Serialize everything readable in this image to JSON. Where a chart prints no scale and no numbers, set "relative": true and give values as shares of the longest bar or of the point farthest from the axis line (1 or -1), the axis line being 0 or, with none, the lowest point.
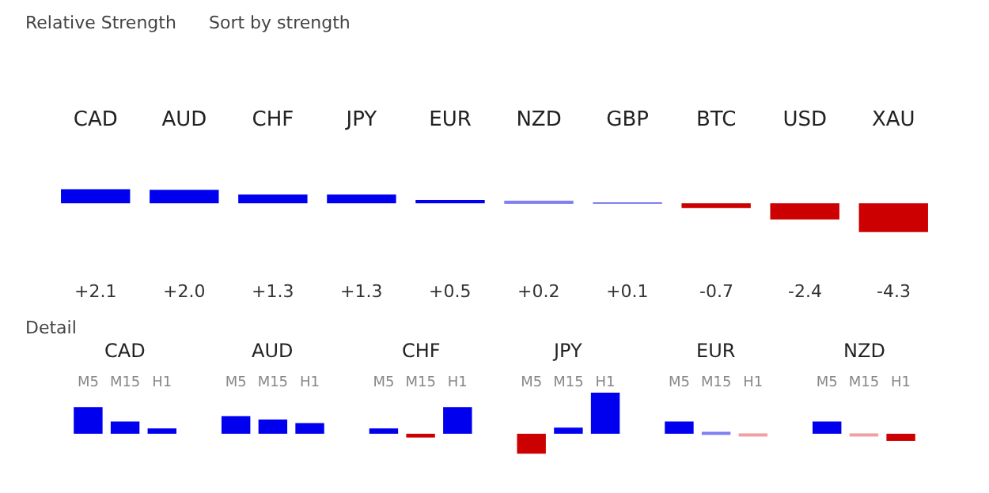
{
  "chart_data": [
    {
      "type": "bar",
      "title": "Relative Strength",
      "annotations": [
        "Sort by strength"
      ],
      "categories": [
        "CAD",
        "AUD",
        "CHF",
        "JPY",
        "EUR",
        "NZD",
        "GBP",
        "BTC",
        "USD",
        "XAU"
      ],
      "values": [
        2.1,
        2.0,
        1.3,
        1.3,
        0.5,
        0.2,
        0.1,
        -0.7,
        -2.4,
        -4.3
      ],
      "colors": [
        "#0000ee",
        "#0000ee",
        "#0000ee",
        "#0000ee",
        "#0000ee",
        "#8080f0",
        "#8080f0",
        "#cc0000",
        "#cc0000",
        "#cc0000"
      ],
      "value_labels": [
        "+2.1",
        "+2.0",
        "+1.3",
        "+1.3",
        "+0.5",
        "+0.2",
        "+0.1",
        "-0.7",
        "-2.4",
        "-4.3"
      ]
    },
    {
      "type": "bar",
      "title": "Detail",
      "relative": true,
      "categories": [
        "CAD",
        "AUD",
        "CHF",
        "JPY",
        "EUR",
        "NZD"
      ],
      "series": [
        {
          "name": "M5",
          "values": [
            0.65,
            0.43,
            0.13,
            -0.48,
            0.3,
            0.3
          ],
          "colors": [
            "#0000ee",
            "#0000ee",
            "#0000ee",
            "#cc0000",
            "#0000ee",
            "#0000ee"
          ]
        },
        {
          "name": "M15",
          "values": [
            0.3,
            0.35,
            -0.09,
            0.15,
            0.04,
            -0.04
          ],
          "colors": [
            "#0000ee",
            "#0000ee",
            "#cc0000",
            "#0000ee",
            "#8080f0",
            "#f0a0a0"
          ]
        },
        {
          "name": "H1",
          "values": [
            0.13,
            0.26,
            0.65,
            1.0,
            -0.04,
            -0.17
          ],
          "colors": [
            "#0000ee",
            "#0000ee",
            "#0000ee",
            "#0000ee",
            "#f0a0a0",
            "#cc0000"
          ]
        }
      ]
    }
  ]
}
